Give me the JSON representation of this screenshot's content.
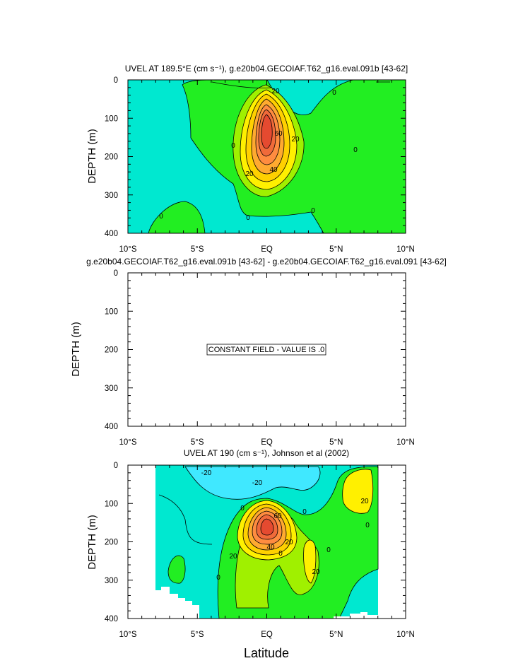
{
  "figure": {
    "xlabel": "Latitude"
  },
  "chart_data": [
    {
      "type": "contour",
      "title": "UVEL AT 189.5°E (cm s⁻¹), g.e20b04.GECOIAF.T62_g16.eval.091b [43-62]",
      "xlabel": "",
      "ylabel": "DEPTH (m)",
      "xlim": [
        -10,
        10
      ],
      "ylim": [
        400,
        0
      ],
      "xticks": [
        "10°S",
        "5°S",
        "EQ",
        "5°N",
        "10°N"
      ],
      "yticks": [
        "0",
        "100",
        "200",
        "300",
        "400"
      ],
      "contour_interval": 10,
      "contour_labels": [
        "0",
        "20",
        "40",
        "60",
        "20",
        "0",
        "0",
        "0",
        "0",
        "0",
        "0",
        "0",
        "20"
      ],
      "core": {
        "lat": 0,
        "depth": 160,
        "max": 80
      },
      "fill_colors": {
        "neg": "#00e8d0",
        "zero": "#22ee22",
        "c10": "#a0f000",
        "c20": "#fff000",
        "c30": "#ffd000",
        "c40": "#ffaa30",
        "c50": "#ff8c40",
        "c60": "#f06a3a",
        "c70": "#e54a30"
      }
    },
    {
      "type": "contour",
      "title": "g.e20b04.GECOIAF.T62_g16.eval.091b [43-62] - g.e20b04.GECOIAF.T62_g16.eval.091 [43-62]",
      "xlabel": "",
      "ylabel": "DEPTH (m)",
      "xlim": [
        -10,
        10
      ],
      "ylim": [
        400,
        0
      ],
      "xticks": [
        "10°S",
        "5°S",
        "EQ",
        "5°N",
        "10°N"
      ],
      "yticks": [
        "0",
        "100",
        "200",
        "300",
        "400"
      ],
      "annotation": "CONSTANT FIELD - VALUE IS .0"
    },
    {
      "type": "contour",
      "title": "UVEL AT 190 (cm s⁻¹), Johnson et al (2002)",
      "xlabel": "Latitude",
      "ylabel": "DEPTH (m)",
      "xlim": [
        -10,
        10
      ],
      "ylim": [
        400,
        0
      ],
      "xticks": [
        "10°S",
        "5°S",
        "EQ",
        "5°N",
        "10°N"
      ],
      "yticks": [
        "0",
        "100",
        "200",
        "300",
        "400"
      ],
      "data_lat_range": [
        -8,
        8
      ],
      "contour_interval": 10,
      "contour_labels": [
        "-20",
        "-20",
        "20",
        "40",
        "60",
        "20",
        "20",
        "20",
        "0",
        "0",
        "0",
        "0",
        "0",
        "0"
      ],
      "core": {
        "lat": 0,
        "depth": 150,
        "max": 80
      },
      "fill_colors": {
        "neg2": "#40e8ff",
        "neg": "#00e8d0",
        "zero": "#22ee22",
        "c10": "#a0f000",
        "c20": "#fff000",
        "c30": "#ffd000",
        "c40": "#ffaa30",
        "c50": "#ff8c40",
        "c60": "#f06a3a",
        "c70": "#e54a30"
      }
    }
  ]
}
